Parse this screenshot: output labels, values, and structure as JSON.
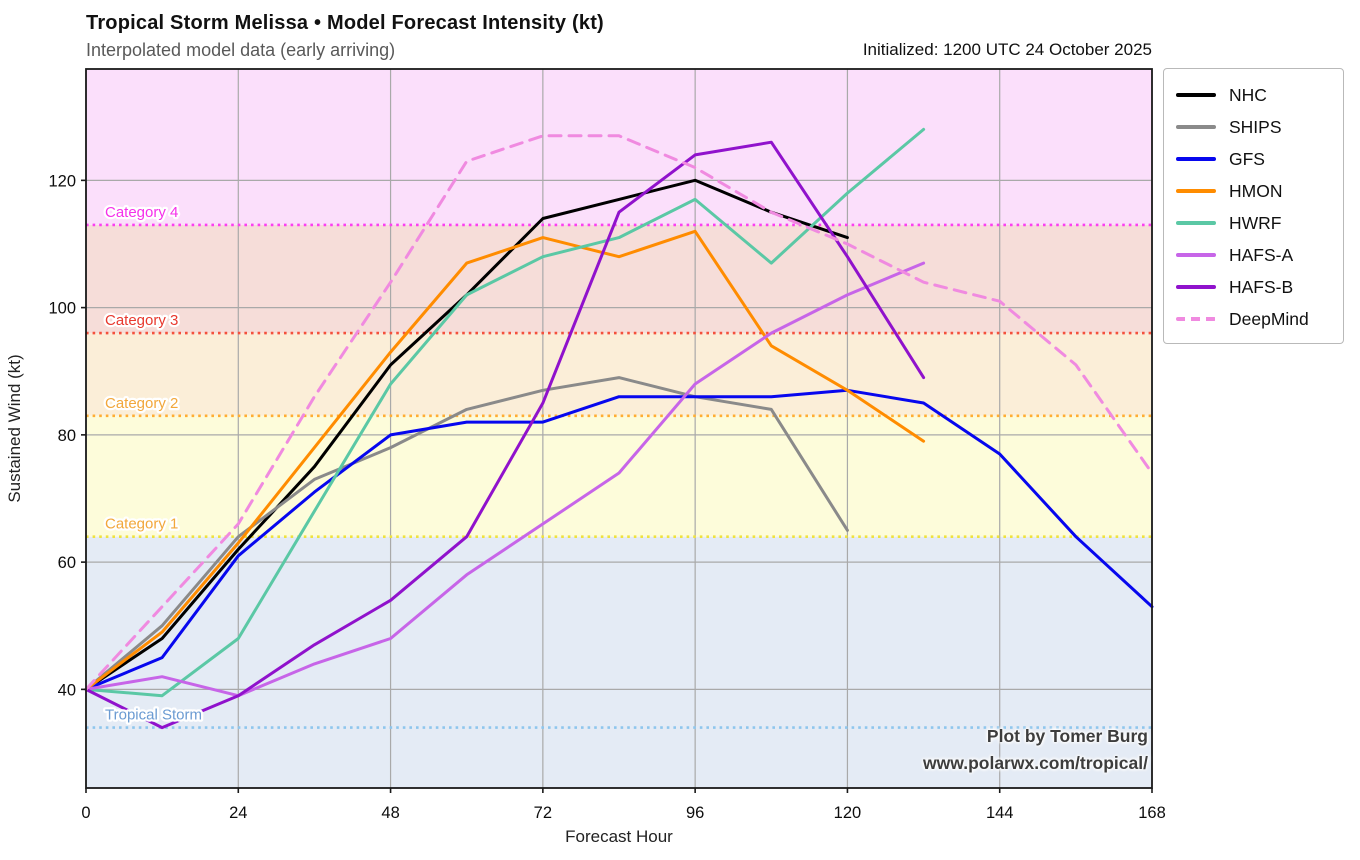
{
  "header": {
    "title": "Tropical Storm Melissa • Model Forecast Intensity (kt)",
    "subtitle": "Interpolated model data (early arriving)",
    "initialized": "Initialized: 1200 UTC 24 October 2025"
  },
  "attribution": {
    "line1": "Plot by Tomer Burg",
    "line2": "www.polarwx.com/tropical/"
  },
  "chart_data": {
    "type": "line",
    "title": "Tropical Storm Melissa • Model Forecast Intensity (kt)",
    "subtitle": "Interpolated model data (early arriving)",
    "xlabel": "Forecast Hour",
    "ylabel": "Sustained Wind (kt)",
    "xlim": [
      0,
      168
    ],
    "ylim": [
      24.5,
      137.5
    ],
    "x_ticks": [
      0,
      24,
      48,
      72,
      96,
      120,
      144,
      168
    ],
    "y_ticks": [
      40,
      60,
      80,
      100,
      120
    ],
    "grid": true,
    "legend_position": "outside-right",
    "category_zones": [
      {
        "label": "Tropical Storm",
        "from": 24.5,
        "to": 64,
        "threshold": 34,
        "band_color": "#e4ebf5",
        "line_color": "#8ec6ed",
        "label_color": "#6b9bd2"
      },
      {
        "label": "Category 1",
        "from": 64,
        "to": 83,
        "threshold": 64,
        "band_color": "#fdfcda",
        "line_color": "#efe23e",
        "label_color": "#f2a73b"
      },
      {
        "label": "Category 2",
        "from": 83,
        "to": 96,
        "threshold": 83,
        "band_color": "#fbeed8",
        "line_color": "#ffad33",
        "label_color": "#f2a73b"
      },
      {
        "label": "Category 3",
        "from": 96,
        "to": 113,
        "threshold": 96,
        "band_color": "#f6ddd9",
        "line_color": "#f4503c",
        "label_color": "#e8392e"
      },
      {
        "label": "Category 4",
        "from": 113,
        "to": 137.5,
        "threshold": 113,
        "band_color": "#fbdffb",
        "line_color": "#fb3ff0",
        "label_color": "#f531ea"
      }
    ],
    "series": [
      {
        "name": "NHC",
        "color": "#000000",
        "dashed": false,
        "points": [
          [
            0,
            40
          ],
          [
            12,
            48
          ],
          [
            24,
            62
          ],
          [
            36,
            75
          ],
          [
            48,
            91
          ],
          [
            60,
            102
          ],
          [
            72,
            114
          ],
          [
            84,
            117
          ],
          [
            96,
            120
          ],
          [
            108,
            115
          ],
          [
            120,
            111
          ]
        ]
      },
      {
        "name": "SHIPS",
        "color": "#8a8a8a",
        "dashed": false,
        "points": [
          [
            0,
            40
          ],
          [
            12,
            50
          ],
          [
            24,
            64
          ],
          [
            36,
            73
          ],
          [
            48,
            78
          ],
          [
            60,
            84
          ],
          [
            72,
            87
          ],
          [
            84,
            89
          ],
          [
            96,
            86
          ],
          [
            108,
            84
          ],
          [
            120,
            65
          ]
        ]
      },
      {
        "name": "GFS",
        "color": "#0707ee",
        "dashed": false,
        "points": [
          [
            0,
            40
          ],
          [
            12,
            45
          ],
          [
            24,
            61
          ],
          [
            36,
            71
          ],
          [
            48,
            80
          ],
          [
            60,
            82
          ],
          [
            72,
            82
          ],
          [
            84,
            86
          ],
          [
            96,
            86
          ],
          [
            108,
            86
          ],
          [
            120,
            87
          ],
          [
            132,
            85
          ],
          [
            144,
            77
          ],
          [
            156,
            64
          ],
          [
            168,
            53
          ]
        ]
      },
      {
        "name": "HMON",
        "color": "#ff8c00",
        "dashed": false,
        "points": [
          [
            0,
            40
          ],
          [
            12,
            49
          ],
          [
            24,
            63
          ],
          [
            36,
            78
          ],
          [
            48,
            93
          ],
          [
            60,
            107
          ],
          [
            72,
            111
          ],
          [
            84,
            108
          ],
          [
            96,
            112
          ],
          [
            108,
            94
          ],
          [
            120,
            87
          ],
          [
            132,
            79
          ]
        ]
      },
      {
        "name": "HWRF",
        "color": "#5bc8a5",
        "dashed": false,
        "points": [
          [
            0,
            40
          ],
          [
            12,
            39
          ],
          [
            24,
            48
          ],
          [
            36,
            68
          ],
          [
            48,
            88
          ],
          [
            60,
            102
          ],
          [
            72,
            108
          ],
          [
            84,
            111
          ],
          [
            96,
            117
          ],
          [
            108,
            107
          ],
          [
            120,
            118
          ],
          [
            132,
            128
          ]
        ]
      },
      {
        "name": "HAFS-A",
        "color": "#c765e8",
        "dashed": false,
        "points": [
          [
            0,
            40
          ],
          [
            12,
            42
          ],
          [
            24,
            39
          ],
          [
            36,
            44
          ],
          [
            48,
            48
          ],
          [
            60,
            58
          ],
          [
            72,
            66
          ],
          [
            84,
            74
          ],
          [
            96,
            88
          ],
          [
            108,
            96
          ],
          [
            120,
            102
          ],
          [
            132,
            107
          ]
        ]
      },
      {
        "name": "HAFS-B",
        "color": "#9012cc",
        "dashed": false,
        "points": [
          [
            0,
            40
          ],
          [
            12,
            34
          ],
          [
            24,
            39
          ],
          [
            36,
            47
          ],
          [
            48,
            54
          ],
          [
            60,
            64
          ],
          [
            72,
            85
          ],
          [
            84,
            115
          ],
          [
            96,
            124
          ],
          [
            108,
            126
          ],
          [
            120,
            108
          ],
          [
            132,
            89
          ]
        ]
      },
      {
        "name": "DeepMind",
        "color": "#f08ae0",
        "dashed": true,
        "points": [
          [
            0,
            40
          ],
          [
            12,
            53
          ],
          [
            24,
            66
          ],
          [
            36,
            86
          ],
          [
            48,
            104
          ],
          [
            60,
            123
          ],
          [
            72,
            127
          ],
          [
            84,
            127
          ],
          [
            96,
            122
          ],
          [
            108,
            115
          ],
          [
            120,
            110
          ],
          [
            132,
            104
          ],
          [
            144,
            101
          ],
          [
            156,
            91
          ],
          [
            168,
            74
          ]
        ]
      }
    ]
  }
}
